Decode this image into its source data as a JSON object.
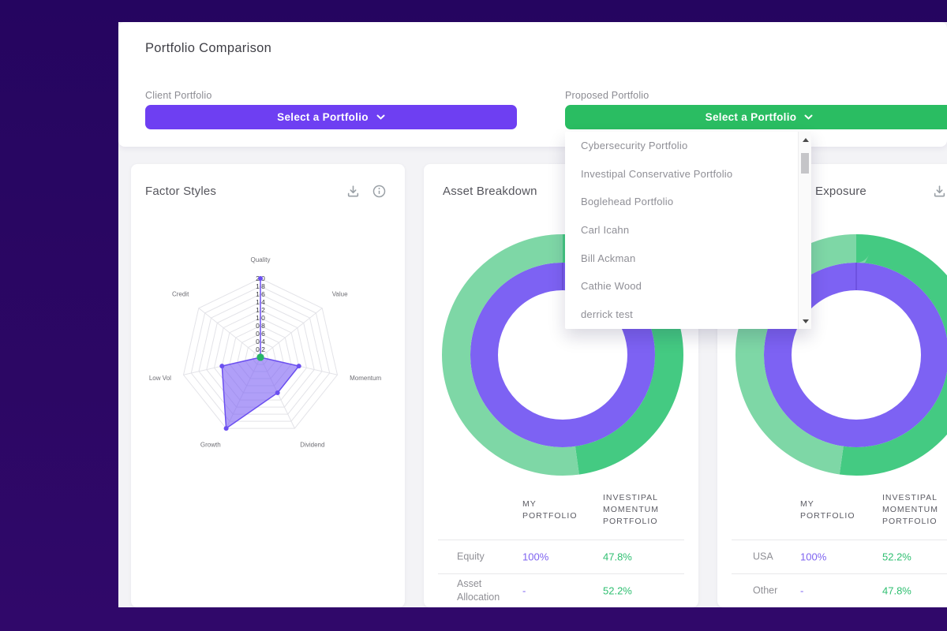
{
  "page": {
    "title": "Portfolio Comparison"
  },
  "selectors": {
    "client": {
      "label": "Client Portfolio",
      "value": "Select a Portfolio"
    },
    "proposed": {
      "label": "Proposed Portfolio",
      "value": "Select a Portfolio"
    }
  },
  "dropdown": {
    "items": [
      "Cybersecurity Portfolio",
      "Investipal Conservative Portfolio",
      "Boglehead Portfolio",
      "Carl Icahn",
      "Bill Ackman",
      "Cathie Wood",
      "derrick test"
    ]
  },
  "cards": [
    {
      "title": "Factor Styles"
    },
    {
      "title": "Asset Breakdown",
      "table": {
        "headers": [
          "",
          "MY PORTFOLIO",
          "INVESTIPAL MOMENTUM PORTFOLIO"
        ],
        "rows": [
          {
            "label": "Equity",
            "my": "100%",
            "proposed": "47.8%"
          },
          {
            "label": "Asset Allocation",
            "my": "-",
            "proposed": "52.2%"
          }
        ]
      }
    },
    {
      "title": "Exposure",
      "table": {
        "headers": [
          "",
          "MY PORTFOLIO",
          "INVESTIPAL MOMENTUM PORTFOLIO"
        ],
        "rows": [
          {
            "label": "USA",
            "my": "100%",
            "proposed": "52.2%"
          },
          {
            "label": "Other",
            "my": "-",
            "proposed": "47.8%"
          }
        ]
      }
    }
  ],
  "chart_data": [
    {
      "type": "radar",
      "title": "Factor Styles",
      "categories": [
        "Quality",
        "Value",
        "Momentum",
        "Dividend",
        "Growth",
        "Low Vol",
        "Credit"
      ],
      "scale": {
        "min": 0,
        "max": 2.0,
        "step": 0.2
      },
      "tick_labels": [
        "0.2",
        "0.4",
        "0.6",
        "0.8",
        "1.0",
        "1.2",
        "1.4",
        "1.6",
        "1.8",
        "2.0"
      ],
      "grid": true,
      "series": [
        {
          "name": "purple-series",
          "color": "#6b4ff0",
          "fill": "rgba(128,100,244,0.62)",
          "dot": 3,
          "values": [
            2.0,
            0,
            1.0,
            1.0,
            2.0,
            1.0,
            0
          ]
        },
        {
          "name": "green-series",
          "color": "#27b567",
          "dot": 4.5,
          "values": [
            0,
            0,
            0,
            0,
            0,
            0,
            0
          ]
        }
      ]
    },
    {
      "type": "donut",
      "title": "Asset Breakdown",
      "rings": [
        {
          "name": "MY PORTFOLIO",
          "segments": [
            {
              "label": "Equity",
              "value": 100,
              "color": "#7d62f3"
            }
          ]
        },
        {
          "name": "INVESTIPAL MOMENTUM PORTFOLIO",
          "segments": [
            {
              "label": "Equity",
              "value": 47.8,
              "color": "#44ca82"
            },
            {
              "label": "Asset Allocation",
              "value": 52.2,
              "color": "#7ed7a6"
            }
          ]
        }
      ]
    },
    {
      "type": "donut",
      "title": "Exposure",
      "rings": [
        {
          "name": "MY PORTFOLIO",
          "segments": [
            {
              "label": "USA",
              "value": 100,
              "color": "#7d62f3"
            }
          ]
        },
        {
          "name": "INVESTIPAL MOMENTUM PORTFOLIO",
          "segments": [
            {
              "label": "USA",
              "value": 52.2,
              "color": "#44ca82"
            },
            {
              "label": "Other",
              "value": 47.8,
              "color": "#7ed7a6"
            }
          ]
        }
      ]
    }
  ],
  "colors": {
    "page_background": "#2c0764",
    "content_background": "#f3f3f6",
    "client_accent": "#6e3ff2",
    "proposed_accent": "#2abd62",
    "donut_purple": "#7d62f3",
    "donut_green_dark": "#44ca82",
    "donut_green_light": "#7ed7a6",
    "value_purple": "#7e63f0",
    "value_green": "#2fbf71"
  },
  "icons": [
    "download-icon",
    "info-icon",
    "chevron-down-icon",
    "scroll-up-icon",
    "scroll-down-icon"
  ]
}
